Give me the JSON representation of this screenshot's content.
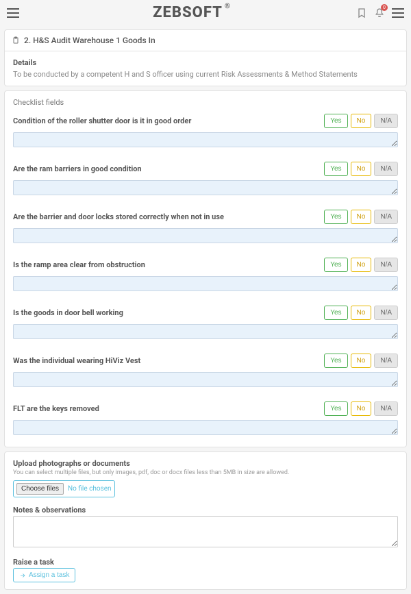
{
  "brand": "ZEBSOFT",
  "brand_reg": "®",
  "notifications_count": "0",
  "page": {
    "title": "2. H&S Audit Warehouse 1 Goods In",
    "details_label": "Details",
    "details_text": "To be conducted by a competent H and S officer using current Risk Assessments & Method Statements"
  },
  "checklist": {
    "section_title": "Checklist fields",
    "option_yes": "Yes",
    "option_no": "No",
    "option_na": "N/A",
    "items": [
      {
        "label": "Condition of the roller shutter door is it in good order"
      },
      {
        "label": "Are the ram barriers in good condition"
      },
      {
        "label": "Are the barrier and door locks stored correctly when not in use"
      },
      {
        "label": "Is the ramp area clear from obstruction"
      },
      {
        "label": "Is the goods in door bell working"
      },
      {
        "label": "Was the individual wearing HiViz Vest"
      },
      {
        "label": "FLT are the keys removed"
      }
    ]
  },
  "upload": {
    "label": "Upload photographs or documents",
    "help": "You can select multiple files, but only images, pdf, doc or docx files less than 5MB in size are allowed.",
    "choose_btn": "Choose files",
    "no_file": "No file chosen"
  },
  "notes": {
    "label": "Notes & observations"
  },
  "task": {
    "label": "Raise a task",
    "assign_btn": "Assign a task"
  },
  "colors": {
    "yes_border": "#4caf50",
    "no_border": "#e6b800",
    "na_bg": "#e6e6e6",
    "textarea_bg": "#e8f2fb",
    "accent": "#5bc0de",
    "badge": "#d9534f"
  }
}
